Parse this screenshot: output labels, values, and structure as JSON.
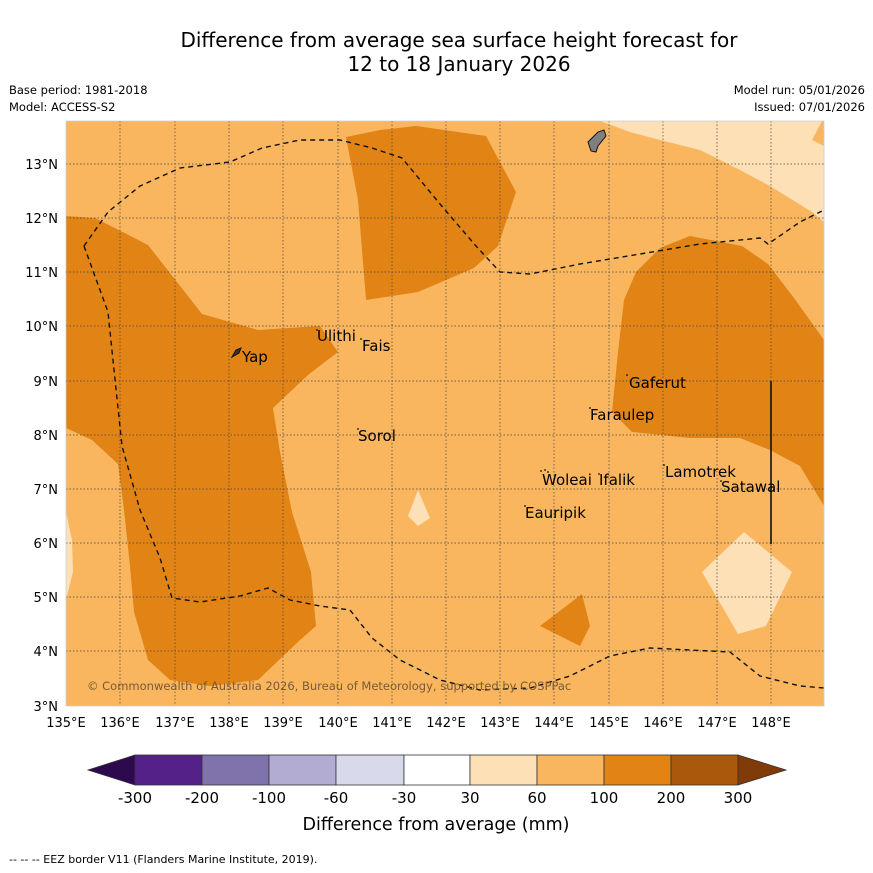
{
  "title": {
    "line1": "Difference from average sea surface height forecast for",
    "line2": "12 to 18 January 2026"
  },
  "meta": {
    "base_period": "Base period: 1981-2018",
    "model": "Model: ACCESS-S2",
    "model_run": "Model run: 05/01/2026",
    "issued": "Issued: 07/01/2026"
  },
  "map": {
    "lat_labels": [
      "13°N",
      "12°N",
      "11°N",
      "10°N",
      "9°N",
      "8°N",
      "7°N",
      "6°N",
      "5°N",
      "4°N",
      "3°N"
    ],
    "lon_labels": [
      "135°E",
      "136°E",
      "137°E",
      "138°E",
      "139°E",
      "140°E",
      "141°E",
      "142°E",
      "143°E",
      "144°E",
      "145°E",
      "146°E",
      "147°E",
      "148°E"
    ],
    "places": [
      {
        "name": "Yap"
      },
      {
        "name": "Ulithi"
      },
      {
        "name": "Fais"
      },
      {
        "name": "Gaferut"
      },
      {
        "name": "Faraulep"
      },
      {
        "name": "Sorol"
      },
      {
        "name": "Lamotrek"
      },
      {
        "name": "Woleai"
      },
      {
        "name": "Ifalik"
      },
      {
        "name": "Satawal"
      },
      {
        "name": "Eauripik"
      }
    ],
    "copyright": "© Commonwealth of Australia 2026, Bureau of Meteorology, supported by COSPPac",
    "colors": {
      "c30_60": "#fde0b6",
      "c60_100": "#f9b65f",
      "c100_200": "#e18315",
      "c200_300": "#aa580b"
    }
  },
  "legend": {
    "ticks": [
      "-300",
      "-200",
      "-100",
      "-60",
      "-30",
      "30",
      "60",
      "100",
      "200",
      "300"
    ],
    "label": "Difference from average (mm)",
    "colors": [
      "#2d0a4e",
      "#542188",
      "#8073ac",
      "#b2abd2",
      "#d8daeb",
      "#ffffff",
      "#fde0b6",
      "#f9b65f",
      "#e18315",
      "#aa580b",
      "#7f3b08"
    ]
  },
  "footer": "--  --  -- EEZ border V11 (Flanders Marine Institute, 2019)."
}
